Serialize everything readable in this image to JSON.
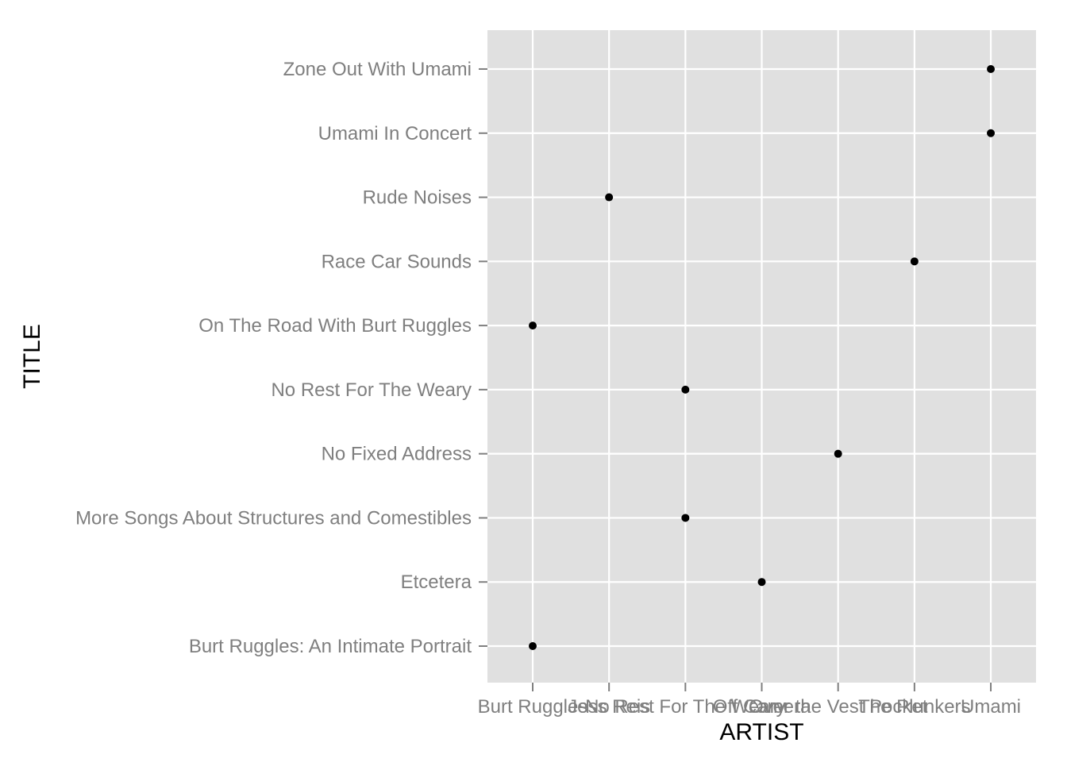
{
  "chart_data": {
    "type": "scatter",
    "title": "",
    "xlabel": "ARTIST",
    "ylabel": "TITLE",
    "x_categories": [
      "Burt Ruggles",
      "Jess Reis",
      "No Rest For The Weary",
      "Off Camera",
      "Over the Vest Pocket",
      "The Plunkers",
      "Umami"
    ],
    "y_categories": [
      "Burt Ruggles: An Intimate Portrait",
      "Etcetera",
      "More Songs About Structures and Comestibles",
      "No Fixed Address",
      "No Rest For The Weary",
      "On The Road With Burt Ruggles",
      "Race Car Sounds",
      "Rude Noises",
      "Umami In Concert",
      "Zone Out With Umami"
    ],
    "points": [
      {
        "x": "Umami",
        "y": "Zone Out With Umami"
      },
      {
        "x": "Umami",
        "y": "Umami In Concert"
      },
      {
        "x": "Jess Reis",
        "y": "Rude Noises"
      },
      {
        "x": "The Plunkers",
        "y": "Race Car Sounds"
      },
      {
        "x": "Burt Ruggles",
        "y": "On The Road With Burt Ruggles"
      },
      {
        "x": "No Rest For The Weary",
        "y": "No Rest For The Weary"
      },
      {
        "x": "Over the Vest Pocket",
        "y": "No Fixed Address"
      },
      {
        "x": "No Rest For The Weary",
        "y": "More Songs About Structures and Comestibles"
      },
      {
        "x": "Off Camera",
        "y": "Etcetera"
      },
      {
        "x": "Burt Ruggles",
        "y": "Burt Ruggles: An Intimate Portrait"
      }
    ],
    "grid": true,
    "legend": "none",
    "colors": {
      "panel": "#e0e0e0",
      "grid": "#ffffff",
      "point": "#000000",
      "tick": "#7f7f7f"
    }
  }
}
